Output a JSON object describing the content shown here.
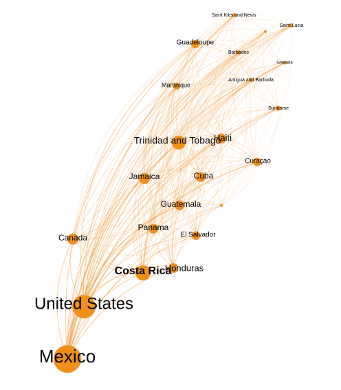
{
  "graph": {
    "colors": {
      "node": "#f0901a",
      "edge": "#f29a3a"
    },
    "nodes": [
      {
        "id": "mexico",
        "label": "Mexico",
        "weight": 1.0
      },
      {
        "id": "united-states",
        "label": "United States",
        "weight": 0.82
      },
      {
        "id": "costa-rica",
        "label": "Costa Rica",
        "weight": 0.45,
        "bold": true
      },
      {
        "id": "honduras",
        "label": "Honduras",
        "weight": 0.32
      },
      {
        "id": "trinidad-and-tobago",
        "label": "Trinidad and Tobago",
        "weight": 0.4
      },
      {
        "id": "haiti",
        "label": "Haiti",
        "weight": 0.3
      },
      {
        "id": "jamaica",
        "label": "Jamaica",
        "weight": 0.34
      },
      {
        "id": "cuba",
        "label": "Cuba",
        "weight": 0.3
      },
      {
        "id": "guatemala",
        "label": "Guatemala",
        "weight": 0.3
      },
      {
        "id": "panama",
        "label": "Panama",
        "weight": 0.3
      },
      {
        "id": "el-salvador",
        "label": "El Salvador",
        "weight": 0.26
      },
      {
        "id": "canada",
        "label": "Canada",
        "weight": 0.3
      },
      {
        "id": "curacao",
        "label": "Curaçao",
        "weight": 0.2
      },
      {
        "id": "guadeloupe",
        "label": "Guadeloupe",
        "weight": 0.22
      },
      {
        "id": "martinique",
        "label": "Martinique",
        "weight": 0.18
      },
      {
        "id": "suriname",
        "label": "Suriname",
        "weight": 0.12
      },
      {
        "id": "barbados",
        "label": "Barbados",
        "weight": 0.1
      },
      {
        "id": "antigua-and-barbuda",
        "label": "Antigua and Barbuda",
        "weight": 0.1
      },
      {
        "id": "saint-kitts-and-nevis",
        "label": "Saint Kitts and Nevis",
        "weight": 0.1
      },
      {
        "id": "saint-lucia",
        "label": "Saint Lucia",
        "weight": 0.1
      },
      {
        "id": "grenada",
        "label": "Grenada",
        "weight": 0.08
      },
      {
        "id": "saint-vincent",
        "label": "",
        "weight": 0.05
      },
      {
        "id": "sint-maarten",
        "label": "",
        "weight": 0.04
      }
    ]
  }
}
